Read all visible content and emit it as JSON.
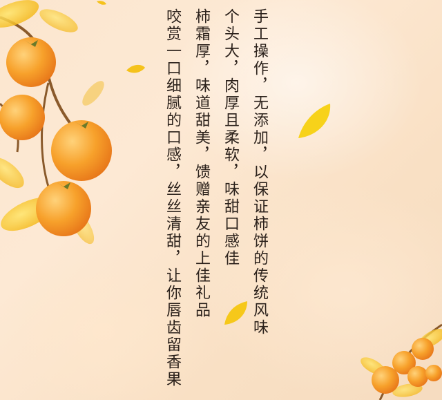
{
  "poem": {
    "lines": [
      "手工操作，无添加，以保证柿饼的传统风味",
      "个头大，肉厚且柔软，味甜口感佳",
      "柿霜厚，味道甜美，馈赠亲友的上佳礼品",
      "咬赏一口细腻的口感，丝丝清甜，让你唇齿留香果"
    ]
  },
  "colors": {
    "text": "#2b211b",
    "background": "#fbe6cf",
    "persimmon": "#f49a1e",
    "leaf_yellow": "#f7c31a"
  }
}
